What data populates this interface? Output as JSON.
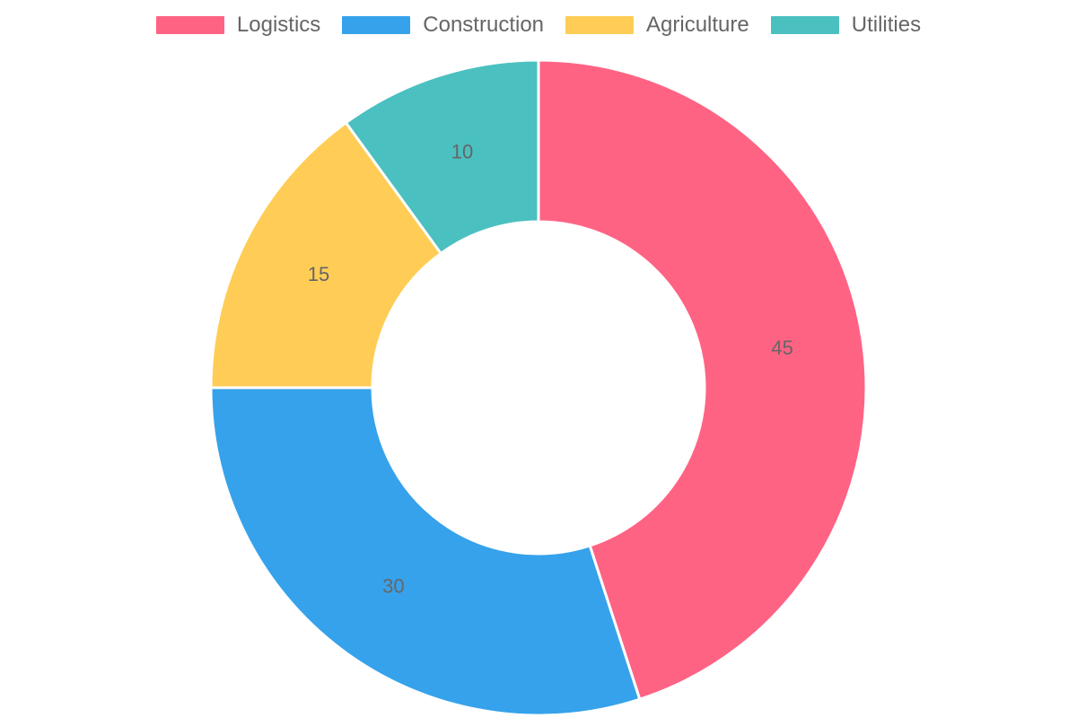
{
  "chart_data": {
    "type": "pie",
    "variant": "doughnut",
    "categories": [
      "Logistics",
      "Construction",
      "Agriculture",
      "Utilities"
    ],
    "values": [
      45,
      30,
      15,
      10
    ],
    "colors": [
      "#ff6384",
      "#36a2eb",
      "#ffcd56",
      "#4bc0c0"
    ],
    "legend": "top",
    "data_labels": [
      "45",
      "30",
      "15",
      "10"
    ]
  }
}
